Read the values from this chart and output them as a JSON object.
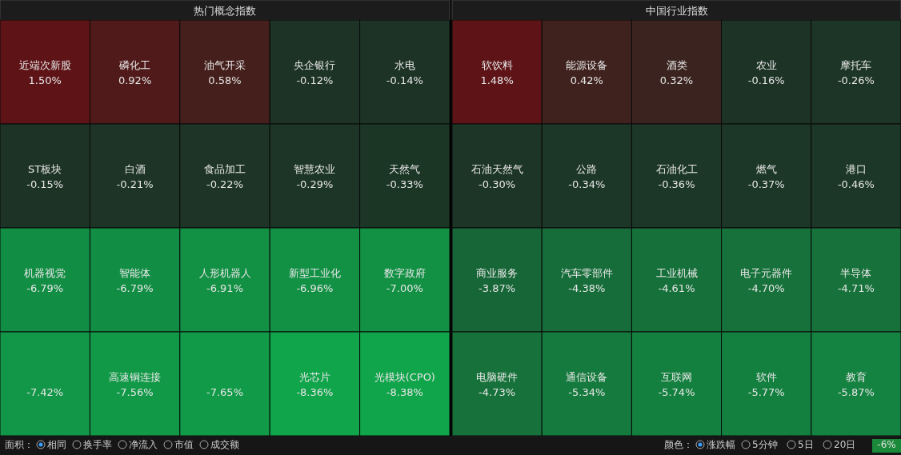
{
  "chart_data": [
    {
      "type": "other",
      "title": "热门概念指数",
      "categories": [
        "近端次新股",
        "磷化工",
        "油气开采",
        "央企银行",
        "水电",
        "ST板块",
        "白酒",
        "食品加工",
        "智慧农业",
        "天然气",
        "机器视觉",
        "智能体",
        "人形机器人",
        "新型工业化",
        "数字政府",
        null,
        "高速铜连接",
        null,
        "光芯片",
        "光模块(CPO)"
      ],
      "values": [
        1.5,
        0.92,
        0.58,
        -0.12,
        -0.14,
        -0.15,
        -0.21,
        -0.22,
        -0.29,
        -0.33,
        -6.79,
        -6.79,
        -6.91,
        -6.96,
        -7.0,
        -7.42,
        -7.56,
        -7.65,
        -8.36,
        -8.38
      ],
      "value_labels": [
        "1.50%",
        "0.92%",
        "0.58%",
        "-0.12%",
        "-0.14%",
        "-0.15%",
        "-0.21%",
        "-0.22%",
        "-0.29%",
        "-0.33%",
        "-6.79%",
        "-6.79%",
        "-6.91%",
        "-6.96%",
        "-7.00%",
        "-7.42%",
        "-7.56%",
        "-7.65%",
        "-8.36%",
        "-8.38%"
      ]
    },
    {
      "type": "other",
      "title": "中国行业指数",
      "categories": [
        "软饮料",
        "能源设备",
        "酒类",
        "农业",
        "摩托车",
        "石油天然气",
        "公路",
        "石油化工",
        "燃气",
        "港口",
        "商业服务",
        "汽车零部件",
        "工业机械",
        "电子元器件",
        "半导体",
        "电脑硬件",
        "通信设备",
        "互联网",
        "软件",
        "教育"
      ],
      "values": [
        1.48,
        0.42,
        0.32,
        -0.16,
        -0.26,
        -0.3,
        -0.34,
        -0.36,
        -0.37,
        -0.46,
        -3.87,
        -4.38,
        -4.61,
        -4.7,
        -4.71,
        -4.73,
        -5.34,
        -5.74,
        -5.77,
        -5.87
      ],
      "value_labels": [
        "1.48%",
        "0.42%",
        "0.32%",
        "-0.16%",
        "-0.26%",
        "-0.30%",
        "-0.34%",
        "-0.36%",
        "-0.37%",
        "-0.46%",
        "-3.87%",
        "-4.38%",
        "-4.61%",
        "-4.70%",
        "-4.71%",
        "-4.73%",
        "-5.34%",
        "-5.74%",
        "-5.77%",
        "-5.87%"
      ]
    },
    {
      "type": "other",
      "annotations": [
        "面积：",
        "相同",
        "换手率",
        "净流入",
        "市值",
        "成交额",
        "颜色：",
        "涨跌幅",
        "5分钟",
        "5日",
        "20日",
        "-6%"
      ]
    }
  ]
}
